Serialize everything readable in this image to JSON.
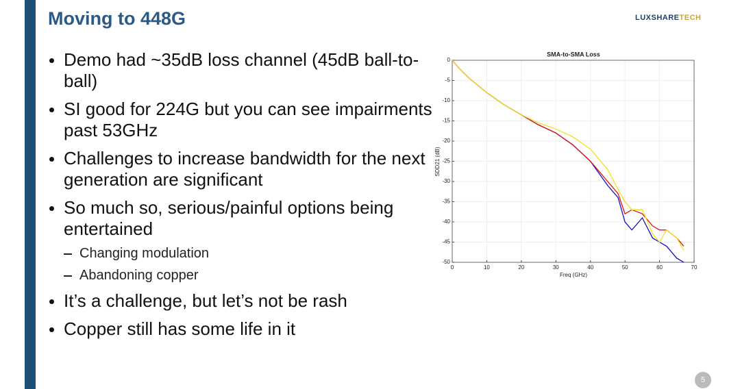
{
  "slide": {
    "title": "Moving to 448G",
    "logo": [
      "LUXSHARE",
      "TECH"
    ],
    "page_number": "5",
    "bullets": [
      {
        "text": "Demo had ~35dB loss channel (45dB ball-to-ball)"
      },
      {
        "text": "SI good for 224G but you can see impairments past 53GHz"
      },
      {
        "text": "Challenges to increase bandwidth for the next generation are significant"
      },
      {
        "text": "So much so, serious/painful options being entertained",
        "sub": [
          "Changing modulation",
          "Abandoning copper"
        ]
      },
      {
        "text": "It’s a challenge, but let’s not be rash"
      },
      {
        "text": "Copper still has some life in it"
      }
    ]
  },
  "chart_data": {
    "type": "line",
    "title": "SMA-to-SMA Loss",
    "x_label": "Freq (GHz)",
    "y_label": "SDD21 (dB)",
    "x": [
      0,
      2,
      5,
      10,
      15,
      20,
      25,
      30,
      35,
      40,
      45,
      48,
      50,
      52,
      55,
      58,
      60,
      62,
      65,
      67
    ],
    "series": [
      {
        "color": "#1010c0",
        "values": [
          0,
          -2,
          -4.5,
          -8,
          -11,
          -13.5,
          -16,
          -18,
          -21,
          -25,
          -31,
          -34,
          -40,
          -42,
          -39,
          -44,
          -45,
          -46,
          -49,
          -50
        ]
      },
      {
        "color": "#e01010",
        "values": [
          0,
          -2,
          -4.5,
          -8,
          -11,
          -13.5,
          -16,
          -18,
          -21,
          -25,
          -30,
          -33,
          -38,
          -37,
          -38,
          -41,
          -42,
          -42,
          -44,
          -46
        ]
      },
      {
        "color": "#f0e020",
        "values": [
          0,
          -2,
          -4.5,
          -8,
          -11,
          -13.5,
          -15.5,
          -17,
          -19,
          -22,
          -27,
          -32,
          -35,
          -37,
          -37,
          -43,
          -45,
          -42,
          -44,
          -47
        ]
      }
    ],
    "xlim": [
      0,
      70
    ],
    "xticks": [
      0,
      10,
      20,
      30,
      40,
      50,
      60,
      70
    ],
    "ylim": [
      -50,
      0
    ],
    "yticks": [
      0,
      -5,
      -10,
      -15,
      -20,
      -25,
      -30,
      -35,
      -40,
      -45,
      -50
    ],
    "grid": true
  }
}
